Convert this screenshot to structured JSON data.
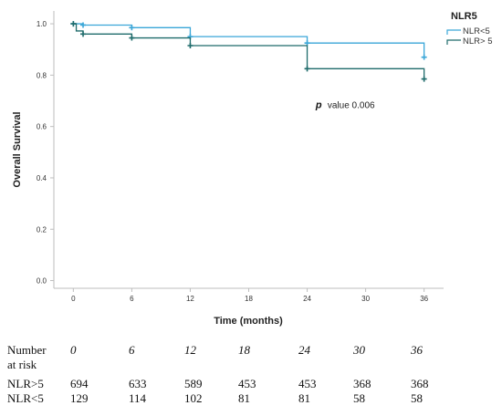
{
  "chart_data": {
    "type": "line",
    "title": "",
    "xlabel": "Time (months)",
    "ylabel": "Overall Survival",
    "xlim": [
      -2,
      38
    ],
    "ylim": [
      -0.03,
      1.05
    ],
    "xticks": [
      0,
      6,
      12,
      18,
      24,
      30,
      36
    ],
    "xtick_labels": [
      "0",
      "6",
      "12",
      "18",
      "24",
      "30",
      "36"
    ],
    "yticks": [
      0.0,
      0.2,
      0.4,
      0.6,
      0.8,
      1.0
    ],
    "ytick_labels": [
      "0.0",
      "0.2",
      "0.4",
      "0.6",
      "0.8",
      "1.0"
    ],
    "grid": false,
    "legend": {
      "title": "NLR5",
      "placement": "top-right"
    },
    "series": [
      {
        "name": "NLR<5",
        "color": "#3aa6d8",
        "steps": [
          [
            0,
            1.0
          ],
          [
            1,
            0.995
          ],
          [
            6,
            0.985
          ],
          [
            12,
            0.95
          ],
          [
            24,
            0.925
          ],
          [
            36,
            0.87
          ]
        ],
        "censored": [
          [
            0,
            1.0
          ],
          [
            1,
            0.995
          ],
          [
            6,
            0.985
          ],
          [
            12,
            0.95
          ],
          [
            24,
            0.925
          ],
          [
            36,
            0.87
          ]
        ]
      },
      {
        "name": "NLR> 5",
        "color": "#1e6b6b",
        "steps": [
          [
            0,
            1.0
          ],
          [
            0.3,
            0.972
          ],
          [
            1,
            0.96
          ],
          [
            6,
            0.945
          ],
          [
            12,
            0.915
          ],
          [
            24,
            0.825
          ],
          [
            36,
            0.785
          ]
        ],
        "censored": [
          [
            0,
            1.0
          ],
          [
            1,
            0.96
          ],
          [
            6,
            0.945
          ],
          [
            12,
            0.915
          ],
          [
            24,
            0.825
          ],
          [
            36,
            0.785
          ]
        ]
      }
    ],
    "annotation": {
      "p_label": "p",
      "value_text": "value 0.006",
      "x": 24.5,
      "y": 0.685
    }
  },
  "risk_table": {
    "header_line1": "Number",
    "header_line2": "at risk",
    "times": [
      "0",
      "6",
      "12",
      "18",
      "24",
      "30",
      "36"
    ],
    "rows": [
      {
        "label": "NLR>5",
        "values": [
          "694",
          "633",
          "589",
          "453",
          "453",
          "368",
          "368"
        ]
      },
      {
        "label": "NLR<5",
        "values": [
          "129",
          "114",
          "102",
          "81",
          "81",
          "58",
          "58"
        ]
      }
    ]
  }
}
